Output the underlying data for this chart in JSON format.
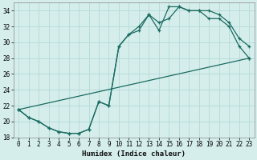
{
  "xlabel": "Humidex (Indice chaleur)",
  "xlim": [
    -0.5,
    23.5
  ],
  "ylim": [
    18,
    35
  ],
  "yticks": [
    18,
    20,
    22,
    24,
    26,
    28,
    30,
    32,
    34
  ],
  "xticks": [
    0,
    1,
    2,
    3,
    4,
    5,
    6,
    7,
    8,
    9,
    10,
    11,
    12,
    13,
    14,
    15,
    16,
    17,
    18,
    19,
    20,
    21,
    22,
    23
  ],
  "bg_color": "#d5eeec",
  "grid_color": "#b8dcda",
  "line_color": "#1a6b60",
  "line1_x": [
    0,
    1,
    2,
    3,
    4,
    5,
    6,
    7,
    8,
    9,
    10,
    11,
    12,
    13,
    14,
    15,
    16,
    17,
    18,
    19,
    20,
    21,
    22,
    23
  ],
  "line1_y": [
    21.5,
    20.5,
    20.0,
    19.2,
    18.7,
    18.5,
    18.5,
    19.0,
    22.5,
    22.0,
    29.5,
    31.0,
    31.5,
    33.5,
    31.5,
    34.5,
    34.5,
    34.0,
    34.0,
    34.0,
    33.5,
    32.5,
    30.5,
    29.5
  ],
  "line2_x": [
    0,
    1,
    2,
    3,
    4,
    5,
    6,
    7,
    8,
    9,
    10,
    11,
    12,
    13,
    14,
    15,
    16,
    17,
    18,
    19,
    20,
    21,
    22,
    23
  ],
  "line2_y": [
    21.5,
    20.5,
    20.0,
    19.2,
    18.7,
    18.5,
    18.5,
    19.0,
    22.5,
    22.0,
    29.5,
    31.0,
    32.0,
    33.5,
    32.5,
    33.0,
    34.5,
    34.0,
    34.0,
    33.0,
    33.0,
    32.0,
    29.5,
    28.0
  ],
  "line3_x": [
    0,
    23
  ],
  "line3_y": [
    21.5,
    28.0
  ]
}
